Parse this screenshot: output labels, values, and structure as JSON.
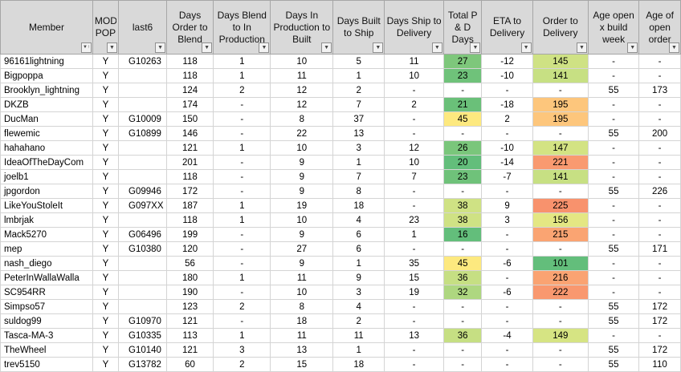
{
  "columns": [
    {
      "key": "member",
      "label": "Member",
      "filter": "sort-asc"
    },
    {
      "key": "mod_pop",
      "label": "MOD POP",
      "filter": "dropdown"
    },
    {
      "key": "last6",
      "label": "last6",
      "filter": "dropdown"
    },
    {
      "key": "days_order_blend",
      "label": "Days Order to Blend",
      "filter": "dropdown"
    },
    {
      "key": "days_blend_production",
      "label": "Days Blend to In Production",
      "filter": "dropdown"
    },
    {
      "key": "days_production_built",
      "label": "Days In Production to Built",
      "filter": "dropdown"
    },
    {
      "key": "days_built_ship",
      "label": "Days Built to Ship",
      "filter": "dropdown"
    },
    {
      "key": "days_ship_delivery",
      "label": "Days Ship to Delivery",
      "filter": "dropdown"
    },
    {
      "key": "total_pd_days",
      "label": "Total P & D Days",
      "filter": "dropdown"
    },
    {
      "key": "eta_delivery",
      "label": "ETA to Delivery",
      "filter": "dropdown"
    },
    {
      "key": "order_delivery",
      "label": "Order to Delivery",
      "filter": "dropdown"
    },
    {
      "key": "age_open_build",
      "label": "Age open x build week",
      "filter": "dropdown"
    },
    {
      "key": "age_open_order",
      "label": "Age of open order",
      "filter": "dropdown"
    }
  ],
  "rows": [
    {
      "member": "96161lightning",
      "mod_pop": "Y",
      "last6": "G10263",
      "days_order_blend": "118",
      "days_blend_production": "1",
      "days_production_built": "10",
      "days_built_ship": "5",
      "days_ship_delivery": "11",
      "total_pd_days": "27",
      "eta_delivery": "-12",
      "order_delivery": "145",
      "age_open_build": "-",
      "age_open_order": "-",
      "total_color": "#7ec77b",
      "order_color": "#cfe284"
    },
    {
      "member": "Bigpoppa",
      "mod_pop": "Y",
      "last6": "",
      "days_order_blend": "118",
      "days_blend_production": "1",
      "days_production_built": "11",
      "days_built_ship": "1",
      "days_ship_delivery": "10",
      "total_pd_days": "23",
      "eta_delivery": "-10",
      "order_delivery": "141",
      "age_open_build": "-",
      "age_open_order": "-",
      "total_color": "#6fc27a",
      "order_color": "#c7e083"
    },
    {
      "member": "Brooklyn_lightning",
      "mod_pop": "Y",
      "last6": "",
      "days_order_blend": "124",
      "days_blend_production": "2",
      "days_production_built": "12",
      "days_built_ship": "2",
      "days_ship_delivery": "-",
      "total_pd_days": "-",
      "eta_delivery": "-",
      "order_delivery": "-",
      "age_open_build": "55",
      "age_open_order": "173",
      "total_color": "",
      "order_color": ""
    },
    {
      "member": "DKZB",
      "mod_pop": "Y",
      "last6": "",
      "days_order_blend": "174",
      "days_blend_production": "-",
      "days_production_built": "12",
      "days_built_ship": "7",
      "days_ship_delivery": "2",
      "total_pd_days": "21",
      "eta_delivery": "-18",
      "order_delivery": "195",
      "age_open_build": "-",
      "age_open_order": "-",
      "total_color": "#6ac079",
      "order_color": "#fdc67c"
    },
    {
      "member": "DucMan",
      "mod_pop": "Y",
      "last6": "G10009",
      "days_order_blend": "150",
      "days_blend_production": "-",
      "days_production_built": "8",
      "days_built_ship": "37",
      "days_ship_delivery": "-",
      "total_pd_days": "45",
      "eta_delivery": "2",
      "order_delivery": "195",
      "age_open_build": "-",
      "age_open_order": "-",
      "total_color": "#fde97f",
      "order_color": "#fdc67c"
    },
    {
      "member": "flewemic",
      "mod_pop": "Y",
      "last6": "G10899",
      "days_order_blend": "146",
      "days_blend_production": "-",
      "days_production_built": "22",
      "days_built_ship": "13",
      "days_ship_delivery": "-",
      "total_pd_days": "-",
      "eta_delivery": "-",
      "order_delivery": "-",
      "age_open_build": "55",
      "age_open_order": "200",
      "total_color": "",
      "order_color": ""
    },
    {
      "member": "hahahano",
      "mod_pop": "Y",
      "last6": "",
      "days_order_blend": "121",
      "days_blend_production": "1",
      "days_production_built": "10",
      "days_built_ship": "3",
      "days_ship_delivery": "12",
      "total_pd_days": "26",
      "eta_delivery": "-10",
      "order_delivery": "147",
      "age_open_build": "-",
      "age_open_order": "-",
      "total_color": "#7ac67b",
      "order_color": "#d3e383"
    },
    {
      "member": "IdeaOfTheDayCom",
      "mod_pop": "Y",
      "last6": "",
      "days_order_blend": "201",
      "days_blend_production": "-",
      "days_production_built": "9",
      "days_built_ship": "1",
      "days_ship_delivery": "10",
      "total_pd_days": "20",
      "eta_delivery": "-14",
      "order_delivery": "221",
      "age_open_build": "-",
      "age_open_order": "-",
      "total_color": "#63be7b",
      "order_color": "#f99a70"
    },
    {
      "member": "joelb1",
      "mod_pop": "Y",
      "last6": "",
      "days_order_blend": "118",
      "days_blend_production": "-",
      "days_production_built": "9",
      "days_built_ship": "7",
      "days_ship_delivery": "7",
      "total_pd_days": "23",
      "eta_delivery": "-7",
      "order_delivery": "141",
      "age_open_build": "-",
      "age_open_order": "-",
      "total_color": "#6fc27a",
      "order_color": "#c7e083"
    },
    {
      "member": "jpgordon",
      "mod_pop": "Y",
      "last6": "G09946",
      "days_order_blend": "172",
      "days_blend_production": "-",
      "days_production_built": "9",
      "days_built_ship": "8",
      "days_ship_delivery": "-",
      "total_pd_days": "-",
      "eta_delivery": "-",
      "order_delivery": "-",
      "age_open_build": "55",
      "age_open_order": "226",
      "total_color": "",
      "order_color": ""
    },
    {
      "member": "LikeYouStoleIt",
      "mod_pop": "Y",
      "last6": "G097XX",
      "days_order_blend": "187",
      "days_blend_production": "1",
      "days_production_built": "19",
      "days_built_ship": "18",
      "days_ship_delivery": "-",
      "total_pd_days": "38",
      "eta_delivery": "9",
      "order_delivery": "225",
      "age_open_build": "-",
      "age_open_order": "-",
      "total_color": "#cfe284",
      "order_color": "#f8926d"
    },
    {
      "member": "lmbrjak",
      "mod_pop": "Y",
      "last6": "",
      "days_order_blend": "118",
      "days_blend_production": "1",
      "days_production_built": "10",
      "days_built_ship": "4",
      "days_ship_delivery": "23",
      "total_pd_days": "38",
      "eta_delivery": "3",
      "order_delivery": "156",
      "age_open_build": "-",
      "age_open_order": "-",
      "total_color": "#cfe284",
      "order_color": "#e4e783"
    },
    {
      "member": "Mack5270",
      "mod_pop": "Y",
      "last6": "G06496",
      "days_order_blend": "199",
      "days_blend_production": "-",
      "days_production_built": "9",
      "days_built_ship": "6",
      "days_ship_delivery": "1",
      "total_pd_days": "16",
      "eta_delivery": "-",
      "order_delivery": "215",
      "age_open_build": "-",
      "age_open_order": "-",
      "total_color": "#63be7b",
      "order_color": "#faa472"
    },
    {
      "member": "mep",
      "mod_pop": "Y",
      "last6": "G10380",
      "days_order_blend": "120",
      "days_blend_production": "-",
      "days_production_built": "27",
      "days_built_ship": "6",
      "days_ship_delivery": "-",
      "total_pd_days": "-",
      "eta_delivery": "-",
      "order_delivery": "-",
      "age_open_build": "55",
      "age_open_order": "171",
      "total_color": "",
      "order_color": ""
    },
    {
      "member": "nash_diego",
      "mod_pop": "Y",
      "last6": "",
      "days_order_blend": "56",
      "days_blend_production": "-",
      "days_production_built": "9",
      "days_built_ship": "1",
      "days_ship_delivery": "35",
      "total_pd_days": "45",
      "eta_delivery": "-6",
      "order_delivery": "101",
      "age_open_build": "-",
      "age_open_order": "-",
      "total_color": "#fde97f",
      "order_color": "#63be7b"
    },
    {
      "member": "PeterInWallaWalla",
      "mod_pop": "Y",
      "last6": "",
      "days_order_blend": "180",
      "days_blend_production": "1",
      "days_production_built": "11",
      "days_built_ship": "9",
      "days_ship_delivery": "15",
      "total_pd_days": "36",
      "eta_delivery": "-",
      "order_delivery": "216",
      "age_open_build": "-",
      "age_open_order": "-",
      "total_color": "#c6df83",
      "order_color": "#faa372"
    },
    {
      "member": "SC954RR",
      "mod_pop": "Y",
      "last6": "",
      "days_order_blend": "190",
      "days_blend_production": "-",
      "days_production_built": "10",
      "days_built_ship": "3",
      "days_ship_delivery": "19",
      "total_pd_days": "32",
      "eta_delivery": "-6",
      "order_delivery": "222",
      "age_open_build": "-",
      "age_open_order": "-",
      "total_color": "#aed780",
      "order_color": "#f9986f"
    },
    {
      "member": "Simpso57",
      "mod_pop": "Y",
      "last6": "",
      "days_order_blend": "123",
      "days_blend_production": "2",
      "days_production_built": "8",
      "days_built_ship": "4",
      "days_ship_delivery": "-",
      "total_pd_days": "-",
      "eta_delivery": "-",
      "order_delivery": "-",
      "age_open_build": "55",
      "age_open_order": "172",
      "total_color": "",
      "order_color": ""
    },
    {
      "member": "suldog99",
      "mod_pop": "Y",
      "last6": "G10970",
      "days_order_blend": "121",
      "days_blend_production": "-",
      "days_production_built": "18",
      "days_built_ship": "2",
      "days_ship_delivery": "-",
      "total_pd_days": "-",
      "eta_delivery": "-",
      "order_delivery": "-",
      "age_open_build": "55",
      "age_open_order": "172",
      "total_color": "",
      "order_color": ""
    },
    {
      "member": "Tasca-MA-3",
      "mod_pop": "Y",
      "last6": "G10335",
      "days_order_blend": "113",
      "days_blend_production": "1",
      "days_production_built": "11",
      "days_built_ship": "11",
      "days_ship_delivery": "13",
      "total_pd_days": "36",
      "eta_delivery": "-4",
      "order_delivery": "149",
      "age_open_build": "-",
      "age_open_order": "-",
      "total_color": "#c6df83",
      "order_color": "#d6e483"
    },
    {
      "member": "TheWheel",
      "mod_pop": "Y",
      "last6": "G10140",
      "days_order_blend": "121",
      "days_blend_production": "3",
      "days_production_built": "13",
      "days_built_ship": "1",
      "days_ship_delivery": "-",
      "total_pd_days": "-",
      "eta_delivery": "-",
      "order_delivery": "-",
      "age_open_build": "55",
      "age_open_order": "172",
      "total_color": "",
      "order_color": ""
    },
    {
      "member": "trev5150",
      "mod_pop": "Y",
      "last6": "G13782",
      "days_order_blend": "60",
      "days_blend_production": "2",
      "days_production_built": "15",
      "days_built_ship": "18",
      "days_ship_delivery": "-",
      "total_pd_days": "-",
      "eta_delivery": "-",
      "order_delivery": "-",
      "age_open_build": "55",
      "age_open_order": "110",
      "total_color": "",
      "order_color": ""
    }
  ]
}
